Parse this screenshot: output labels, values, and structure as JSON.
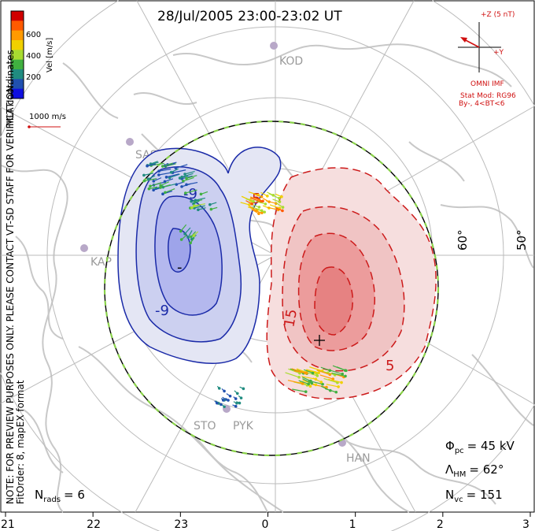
{
  "title": "28/Jul/2005 23:00-23:02 UT",
  "colorbar": {
    "label": "Vel [m/s]",
    "ticks": [
      "600",
      "400",
      "200"
    ],
    "colors": [
      "#d00000",
      "#ff5a00",
      "#ff9a00",
      "#f0d000",
      "#a8dc30",
      "#40b040",
      "#208c80",
      "#2050b0",
      "#1010e0"
    ]
  },
  "coord_note": "MLT coordinates",
  "velocity_scale": "1000 m/s",
  "imf": {
    "bz_label": "+Z (5 nT)",
    "by_label": "+Y",
    "source": "OMNI IMF",
    "model": "Stat Mod: RG96",
    "condition": "By-, 4<BT<6"
  },
  "side_notes": [
    "NOTE: FOR PREVIEW PURPOSES ONLY. PLEASE CONTACT VT-SD STAFF FOR VERIFICATION.",
    "FitOrder: 8, mapEX format"
  ],
  "latitude_labels": [
    "60°",
    "50°"
  ],
  "stations": [
    "KOD",
    "SAS",
    "KAP",
    "STO",
    "PYK",
    "HAN"
  ],
  "contour_labels": {
    "negative": [
      "-9",
      "-9",
      "-"
    ],
    "positive": [
      "15",
      "5",
      "5"
    ]
  },
  "stats": {
    "phi_pc": "Φ",
    "phi_sub": "pc",
    "phi_value": "= 45 kV",
    "lambda": "Λ",
    "lambda_sub": "HM",
    "lambda_value": "= 62°",
    "nvc": "N",
    "nvc_sub": "vc",
    "nvc_value": "= 151",
    "nrads": "N",
    "nrads_sub": "rads",
    "nrads_value": "= 6"
  },
  "mlt_ticks": [
    "21",
    "22",
    "23",
    "0",
    "1",
    "2",
    "3"
  ],
  "colors": {
    "negative_fill_outer": "#e4e6f4",
    "negative_fill_inner": "#b4b8ee",
    "negative_line": "#1a2aa8",
    "positive_fill_outer": "#f6dede",
    "positive_fill_inner": "#ec9c9c",
    "positive_line": "#cc1a1a",
    "coast": "#c8c8c8",
    "grid": "#bbbbbb",
    "boundary_dash": "#8ad24a"
  }
}
